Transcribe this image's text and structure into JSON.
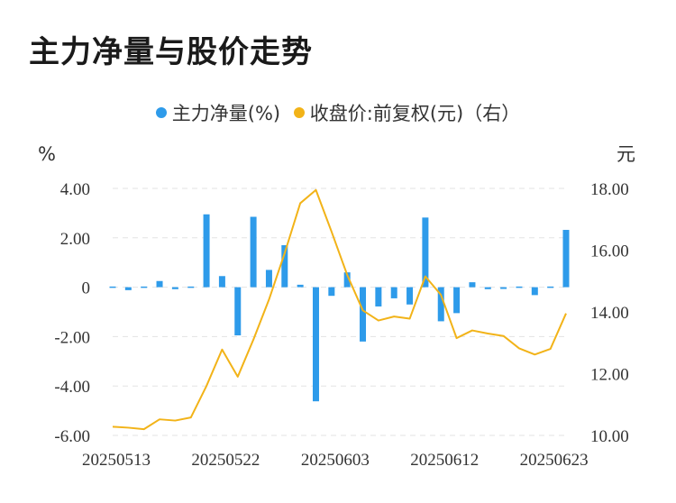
{
  "page": {
    "title": "主力净量与股价走势"
  },
  "colors": {
    "bar": "#2E9BEA",
    "line": "#F2B318",
    "grid": "#E3E3E3"
  },
  "chart_data": {
    "type": "bar+line",
    "title": "主力净量与股价走势",
    "legend": [
      {
        "name": "主力净量(%)",
        "color": "#2E9BEA"
      },
      {
        "name": "收盘价:前复权(元)（右）",
        "color": "#F2B318"
      }
    ],
    "y_left": {
      "unit": "%",
      "range": [
        -6,
        4
      ],
      "ticks": [
        "4.00",
        "2.00",
        "0",
        "-2.00",
        "-4.00",
        "-6.00"
      ],
      "tick_values": [
        4,
        2,
        0,
        -2,
        -4,
        -6
      ]
    },
    "y_right": {
      "unit": "元",
      "range": [
        10,
        18
      ],
      "ticks": [
        "18.00",
        "16.00",
        "14.00",
        "12.00",
        "10.00"
      ],
      "tick_values": [
        18,
        16,
        14,
        12,
        10
      ]
    },
    "x_tick_labels": [
      "20250513",
      "20250522",
      "20250603",
      "20250612",
      "20250623"
    ],
    "x_tick_label_index": [
      0,
      7,
      14,
      21,
      28
    ],
    "categories": [
      "20250513",
      "20250514",
      "20250515",
      "20250516",
      "20250519",
      "20250520",
      "20250521",
      "20250522",
      "20250523",
      "20250526",
      "20250527",
      "20250528",
      "20250529",
      "20250530",
      "20250603",
      "20250604",
      "20250605",
      "20250606",
      "20250609",
      "20250610",
      "20250611",
      "20250612",
      "20250613",
      "20250616",
      "20250617",
      "20250618",
      "20250619",
      "20250620",
      "20250623",
      "20250624"
    ],
    "series": [
      {
        "name": "主力净量(%)",
        "type": "bar",
        "values": [
          -0.05,
          -0.12,
          -0.05,
          0.25,
          -0.08,
          -0.05,
          2.95,
          0.45,
          -1.95,
          2.85,
          0.7,
          1.7,
          0.1,
          -4.62,
          -0.35,
          0.6,
          -2.2,
          -0.78,
          -0.45,
          -0.7,
          2.82,
          -1.38,
          -1.05,
          0.2,
          -0.08,
          -0.07,
          0.0,
          -0.32,
          -0.04,
          2.32
        ]
      },
      {
        "name": "收盘价:前复权(元)（右）",
        "type": "line",
        "values": [
          10.28,
          10.25,
          10.2,
          10.52,
          10.48,
          10.58,
          11.6,
          12.78,
          11.9,
          13.1,
          14.4,
          15.9,
          17.52,
          17.95,
          16.6,
          15.2,
          14.05,
          13.72,
          13.85,
          13.78,
          15.15,
          14.55,
          13.15,
          13.4,
          13.3,
          13.22,
          12.82,
          12.62,
          12.8,
          13.95
        ]
      }
    ]
  }
}
